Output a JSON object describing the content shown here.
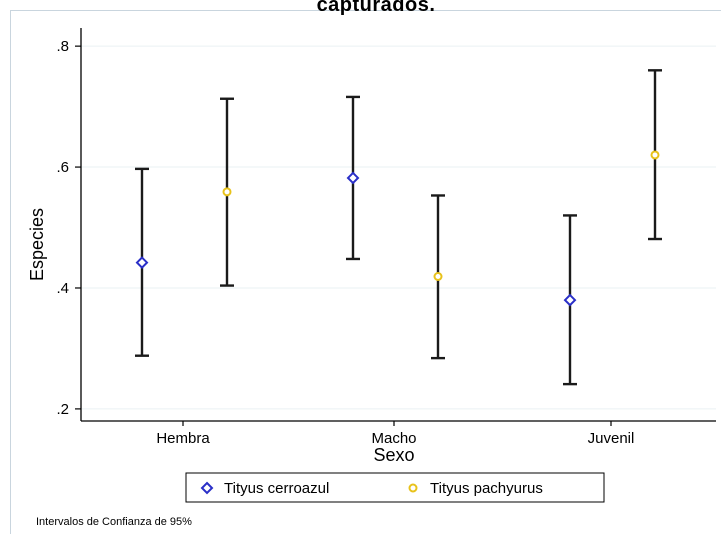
{
  "title_fragment": "capturados.",
  "note": "Intervalos de Confianza de 95%",
  "chart_data": {
    "type": "scatter",
    "title": "",
    "xlabel": "Sexo",
    "ylabel": "Especies",
    "categories": [
      "Hembra",
      "Macho",
      "Juvenil"
    ],
    "ylim": [
      0.18,
      0.83
    ],
    "yticks": [
      0.2,
      0.4,
      0.6,
      0.8
    ],
    "ytick_labels": [
      ".2",
      ".4",
      ".6",
      ".8"
    ],
    "grid": true,
    "legend_position": "bottom",
    "series": [
      {
        "name": "Tityus cerroazul",
        "marker": "diamond",
        "color": "#2a2fc8",
        "values": [
          0.442,
          0.582,
          0.38
        ],
        "ci_low": [
          0.288,
          0.448,
          0.241
        ],
        "ci_high": [
          0.597,
          0.716,
          0.52
        ]
      },
      {
        "name": "Tityus pachyurus",
        "marker": "circle",
        "color": "#e8c21a",
        "values": [
          0.559,
          0.419,
          0.62
        ],
        "ci_low": [
          0.404,
          0.284,
          0.481
        ],
        "ci_high": [
          0.713,
          0.553,
          0.76
        ]
      }
    ]
  }
}
